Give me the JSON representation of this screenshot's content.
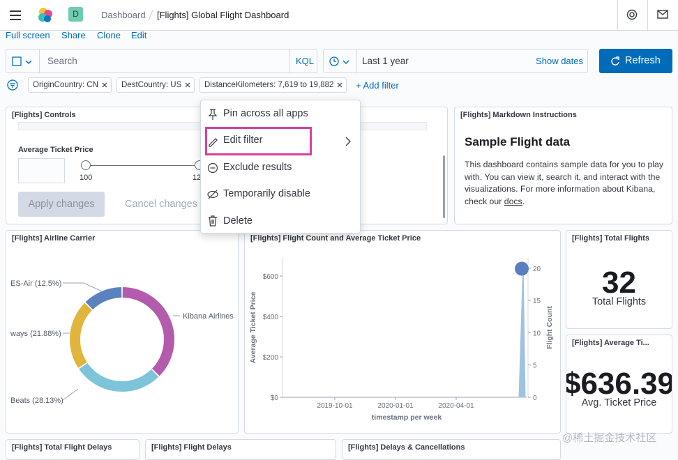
{
  "header": {
    "space_badge": "D",
    "breadcrumbs": [
      "Dashboard",
      "[Flights] Global Flight Dashboard"
    ]
  },
  "top_nav": [
    "Full screen",
    "Share",
    "Clone",
    "Edit"
  ],
  "query_bar": {
    "search_placeholder": "Search",
    "language": "KQL",
    "date_range": "Last 1 year",
    "show_dates": "Show dates",
    "refresh": "Refresh"
  },
  "filters": {
    "pills": [
      "OriginCountry: CN",
      "DestCountry: US",
      "DistanceKilometers: 7,619 to 19,882"
    ],
    "add_filter": "+ Add filter"
  },
  "context_menu": {
    "items": [
      "Pin across all apps",
      "Edit filter",
      "Exclude results",
      "Temporarily disable",
      "Delete"
    ]
  },
  "panels": {
    "controls": {
      "title": "[Flights] Controls",
      "field_label": "Average Ticket Price",
      "min_label": "100",
      "max_label": "12",
      "apply": "Apply changes",
      "cancel": "Cancel changes"
    },
    "markdown": {
      "title": "[Flights] Markdown Instructions",
      "heading": "Sample Flight data",
      "text": "This dashboard contains sample data for you to play with. You can view it, search it, and interact with the visualizations. For more information about Kibana, check our ",
      "link": "docs",
      "text_end": "."
    },
    "airline_carrier": {
      "title": "[Flights] Airline Carrier",
      "segments": [
        {
          "label": "Kibana Airlines",
          "value": 37.49,
          "color": "#b35bad"
        },
        {
          "label": "Beats (28.13%)",
          "value": 28.13,
          "color": "#7dc4da"
        },
        {
          "label": "ways (21.88%)",
          "value": 21.88,
          "color": "#e0b53b"
        },
        {
          "label": "ES-Air (12.5%)",
          "value": 12.5,
          "color": "#5a82be"
        }
      ]
    },
    "flight_chart": {
      "title": "[Flights] Flight Count and Average Ticket Price",
      "y_label": "Average Ticket Price",
      "y2_label": "Flight Count",
      "x_label": "timestamp per week",
      "ylim": [
        0,
        690
      ],
      "yticks": [
        {
          "value": 0,
          "label": "$0"
        },
        {
          "value": 200,
          "label": "$200"
        },
        {
          "value": 400,
          "label": "$400"
        },
        {
          "value": 600,
          "label": "$600"
        }
      ],
      "y2lim": [
        0,
        21.6
      ],
      "y2ticks": [
        0,
        5,
        10,
        15,
        20
      ],
      "x_tick_labels": [
        "2019-10-01",
        "2020-01-01",
        "2020-04-01"
      ],
      "avg_ticket_price": 636.39,
      "avg_color": "#5a7fc0",
      "flight_count": 21,
      "count_color": "#9fc2e0"
    },
    "total_flights": {
      "title": "[Flights] Total Flights",
      "value": "32",
      "label": "Total Flights"
    },
    "avg_price": {
      "title": "[Flights] Average Ti...",
      "value": "$636.39",
      "label": "Avg. Ticket Price"
    },
    "bottom_titles": [
      "[Flights] Total Flight Delays",
      "[Flights] Flight Delays",
      "[Flights] Delays & Cancellations"
    ]
  },
  "watermark": "@稀土掘金技术社区"
}
